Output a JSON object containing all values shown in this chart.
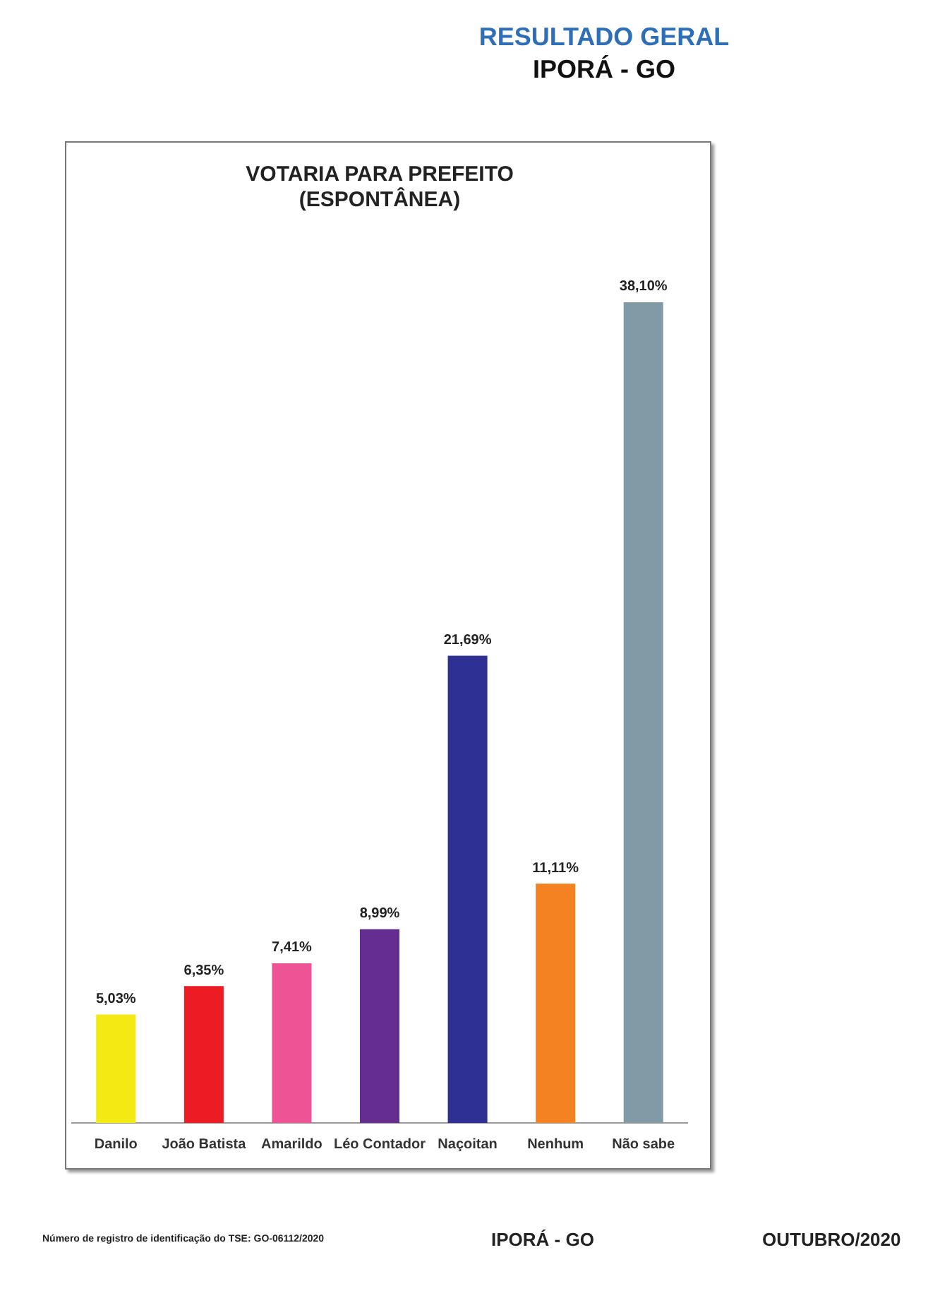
{
  "chart_data": {
    "type": "bar",
    "title": "VOTARIA PARA PREFEITO",
    "subtitle": "(ESPONTÂNEA)",
    "categories": [
      "Danilo",
      "João Batista",
      "Amarildo",
      "Léo Contador",
      "Naçoitan",
      "Nenhum",
      "Não sabe"
    ],
    "values": [
      5.03,
      6.35,
      7.41,
      8.99,
      21.69,
      11.11,
      38.1
    ],
    "value_labels": [
      "5,03%",
      "6,35%",
      "7,41%",
      "8,99%",
      "21,69%",
      "11,11%",
      "38,10%"
    ],
    "colors": [
      "#f2ea12",
      "#ec1c24",
      "#ee5396",
      "#662d91",
      "#2e3192",
      "#f58220",
      "#8299a6"
    ],
    "grid": false,
    "legend": false,
    "annotations": [
      "RESULTADO GERAL",
      "IPORÁ - GO",
      "Número de registro de identificação do TSE: GO-06112/2020",
      "IPORÁ - GO",
      "OUTUBRO/2020"
    ]
  }
}
